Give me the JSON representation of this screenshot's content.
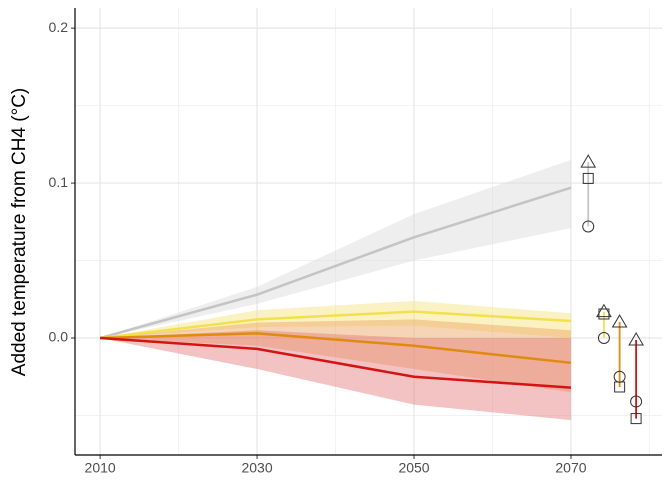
{
  "chart_data": {
    "type": "line",
    "ylabel": "Added temperature from CH4 (°C)",
    "x": [
      2010,
      2030,
      2050,
      2070
    ],
    "xlim": [
      2006.8,
      2081.6
    ],
    "ylim": [
      -0.0755,
      0.213
    ],
    "xticks": [
      2010,
      2030,
      2050,
      2070
    ],
    "yticks": [
      {
        "value": 0,
        "label": "0.0"
      },
      {
        "value": 0.1,
        "label": "0.1"
      },
      {
        "value": 0.2,
        "label": "0.2"
      }
    ],
    "x_minor_grid": [
      2020,
      2040,
      2060,
      2080
    ],
    "y_minor_grid": [
      -0.05,
      0.05,
      0.15
    ],
    "grid": true,
    "series": [
      {
        "color": "#c4c4c4",
        "band_color": "#d9d9d9",
        "values": [
          0,
          0.028,
          0.065,
          0.097
        ],
        "lower": [
          0,
          0.022,
          0.05,
          0.071
        ],
        "upper": [
          0,
          0.033,
          0.08,
          0.115
        ]
      },
      {
        "color": "#f3e04e",
        "band_color": "#f6e27a",
        "values": [
          0,
          0.012,
          0.017,
          0.011
        ],
        "lower": [
          0,
          0.007,
          0.008,
          0.0
        ],
        "upper": [
          0,
          0.018,
          0.024,
          0.016
        ]
      },
      {
        "color": "#e08a10",
        "band_color": "#eca25e",
        "values": [
          0,
          0.003,
          -0.005,
          -0.016
        ],
        "lower": [
          0,
          -0.005,
          -0.02,
          -0.035
        ],
        "upper": [
          0,
          0.01,
          0.012,
          0.005
        ]
      },
      {
        "color": "#d41414",
        "band_color": "#e47a7a",
        "values": [
          0,
          -0.007,
          -0.025,
          -0.032
        ],
        "lower": [
          0,
          -0.02,
          -0.043,
          -0.053
        ],
        "upper": [
          0,
          0.005,
          0.0,
          0.0
        ]
      }
    ],
    "endpoints": {
      "x": [
        2072.2,
        2074.2,
        2076.2,
        2078.3
      ],
      "triangle": [
        0.1135,
        0.017,
        0.0103,
        -0.0013
      ],
      "square": [
        0.103,
        0.0155,
        -0.0316,
        -0.052
      ],
      "circle": [
        0.072,
        0.0,
        -0.025,
        -0.041
      ]
    }
  }
}
